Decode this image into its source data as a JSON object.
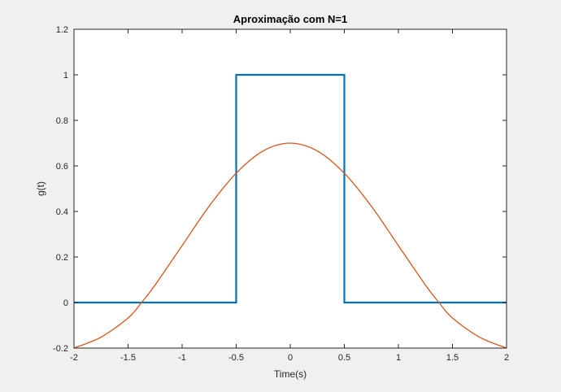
{
  "chart_data": {
    "type": "line",
    "title": "Aproximação com N=1",
    "xlabel": "Time(s)",
    "ylabel": "g(t)",
    "xlim": [
      -2,
      2
    ],
    "ylim": [
      -0.2,
      1.2
    ],
    "xticks": [
      -2,
      -1.5,
      -1,
      -0.5,
      0,
      0.5,
      1,
      1.5,
      2
    ],
    "xtick_labels": [
      "-2",
      "-1.5",
      "-1",
      "-0.5",
      "0",
      "0.5",
      "1",
      "1.5",
      "2"
    ],
    "yticks": [
      -0.2,
      0,
      0.2,
      0.4,
      0.6,
      0.8,
      1,
      1.2
    ],
    "ytick_labels": [
      "-0.2",
      "0",
      "0.2",
      "0.4",
      "0.6",
      "0.8",
      "1",
      "1.2"
    ],
    "grid": false,
    "series": [
      {
        "color": "#0072bd",
        "x": [
          -2,
          -0.5,
          -0.5,
          0.5,
          0.5,
          2
        ],
        "y": [
          0,
          0,
          1,
          1,
          0,
          0
        ]
      },
      {
        "color": "#d95319",
        "x": [
          -2,
          -1.75,
          -1.5,
          -1.375,
          -1.25,
          -1,
          -0.75,
          -0.5,
          -0.25,
          0,
          0.25,
          0.5,
          0.75,
          1,
          1.25,
          1.375,
          1.5,
          1.75,
          2
        ],
        "y": [
          -0.2,
          -0.152,
          -0.068,
          0,
          0.077,
          0.25,
          0.423,
          0.568,
          0.666,
          0.7,
          0.666,
          0.568,
          0.423,
          0.25,
          0.077,
          0,
          -0.068,
          -0.152,
          -0.2
        ]
      }
    ]
  }
}
